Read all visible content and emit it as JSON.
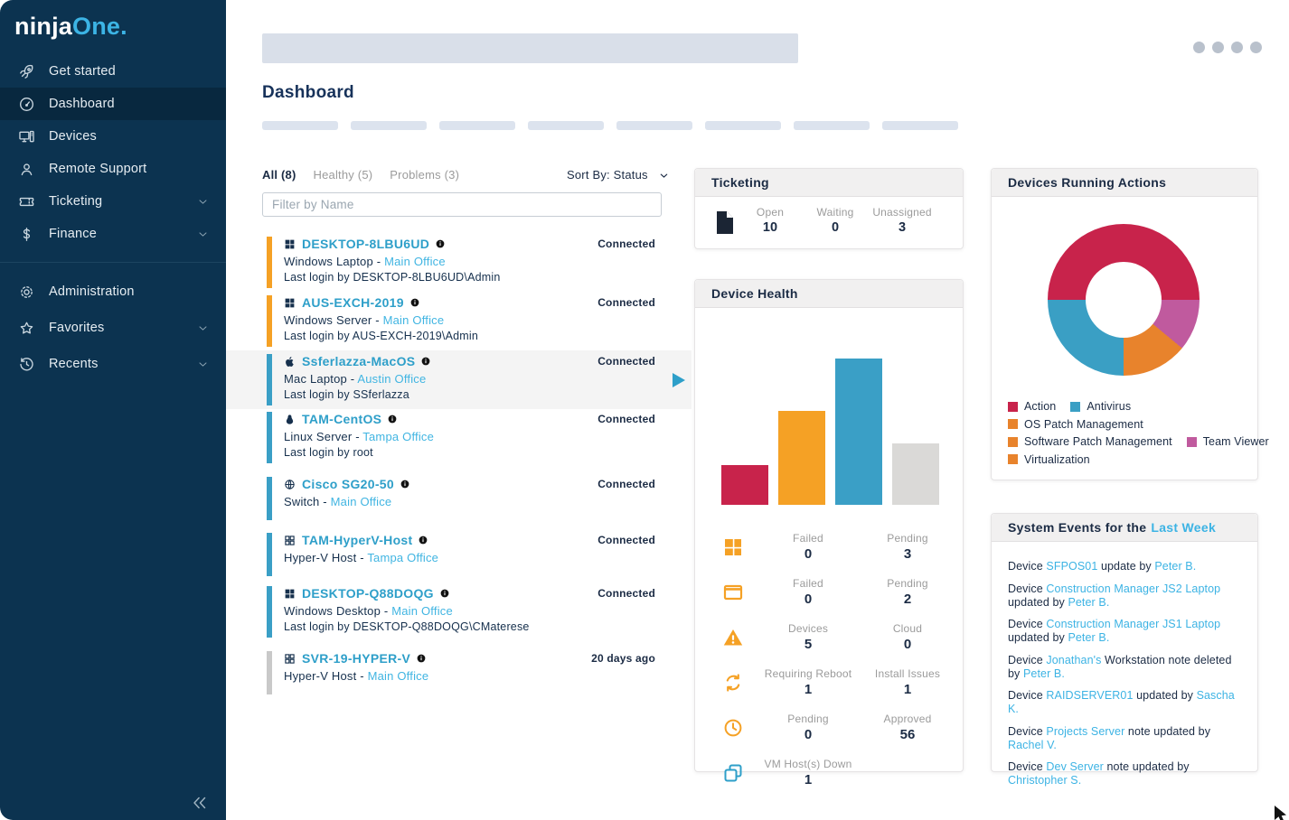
{
  "app": {
    "brand_ninja": "ninja",
    "brand_one": "One."
  },
  "sidebar": {
    "items": [
      {
        "label": "Get started",
        "icon": "rocket"
      },
      {
        "label": "Dashboard",
        "icon": "speedometer",
        "active": true
      },
      {
        "label": "Devices",
        "icon": "devices"
      },
      {
        "label": "Remote Support",
        "icon": "person"
      },
      {
        "label": "Ticketing",
        "icon": "ticket",
        "chevron": true
      },
      {
        "label": "Finance",
        "icon": "dollar",
        "chevron": true
      },
      {
        "divider": true
      },
      {
        "label": "Administration",
        "icon": "gear",
        "group2": true
      },
      {
        "label": "Favorites",
        "icon": "star",
        "chevron": true,
        "group2": true
      },
      {
        "label": "Recents",
        "icon": "history",
        "chevron": true,
        "group2": true
      }
    ]
  },
  "header": {
    "title": "Dashboard"
  },
  "device_list": {
    "tabs": [
      {
        "label": "All (8)",
        "active": true
      },
      {
        "label": "Healthy (5)"
      },
      {
        "label": "Problems (3)"
      }
    ],
    "sort_label": "Sort By: Status",
    "filter_placeholder": "Filter by Name",
    "devices": [
      {
        "name": "DESKTOP-8LBU6UD",
        "os": "windows",
        "bar_color": "#F5A125",
        "status": "Connected",
        "type": "Windows Laptop",
        "office": "Main Office",
        "last_login": "Last login by DESKTOP-8LBU6UD\\Admin"
      },
      {
        "name": "AUS-EXCH-2019",
        "os": "windows",
        "bar_color": "#F5A125",
        "status": "Connected",
        "type": "Windows Server",
        "office": "Main Office",
        "last_login": "Last login by AUS-EXCH-2019\\Admin"
      },
      {
        "name": "Ssferlazza-MacOS",
        "os": "apple",
        "bar_color": "#3A9FC6",
        "status": "Connected",
        "type": "Mac Laptop",
        "office": "Austin Office",
        "last_login": "Last login by SSferlazza",
        "selected": true
      },
      {
        "name": "TAM-CentOS",
        "os": "linux",
        "bar_color": "#3A9FC6",
        "status": "Connected",
        "type": "Linux Server",
        "office": "Tampa Office",
        "last_login": "Last login by root"
      },
      {
        "name": "Cisco SG20-50",
        "os": "globe",
        "bar_color": "#3A9FC6",
        "status": "Connected",
        "type": "Switch",
        "office": "Main Office"
      },
      {
        "name": "TAM-HyperV-Host",
        "os": "grid",
        "bar_color": "#3A9FC6",
        "status": "Connected",
        "type": "Hyper-V Host",
        "office": "Tampa Office"
      },
      {
        "name": "DESKTOP-Q88DOQG",
        "os": "windows",
        "bar_color": "#3A9FC6",
        "status": "Connected",
        "type": "Windows Desktop",
        "office": "Main Office",
        "last_login": "Last login by DESKTOP-Q88DOQG\\CMaterese"
      },
      {
        "name": "SVR-19-HYPER-V",
        "os": "grid",
        "bar_color": "#C9C9C9",
        "status": "20 days ago",
        "type": "Hyper-V Host",
        "office": "Main Office"
      }
    ]
  },
  "ticketing": {
    "title": "Ticketing",
    "stats": [
      {
        "label": "Open",
        "value": "10"
      },
      {
        "label": "Waiting",
        "value": "0"
      },
      {
        "label": "Unassigned",
        "value": "3"
      }
    ]
  },
  "device_health": {
    "title": "Device Health",
    "stats": [
      {
        "icon": "windows-orange",
        "cols": [
          {
            "label": "Failed",
            "value": "0"
          },
          {
            "label": "Pending",
            "value": "3"
          }
        ]
      },
      {
        "icon": "app-window",
        "cols": [
          {
            "label": "Failed",
            "value": "0"
          },
          {
            "label": "Pending",
            "value": "2"
          }
        ]
      },
      {
        "icon": "warning",
        "cols": [
          {
            "label": "Devices",
            "value": "5"
          },
          {
            "label": "Cloud",
            "value": "0"
          }
        ]
      },
      {
        "icon": "sync",
        "cols": [
          {
            "label": "Requiring Reboot",
            "value": "1"
          },
          {
            "label": "Install Issues",
            "value": "1"
          }
        ]
      },
      {
        "icon": "clock",
        "cols": [
          {
            "label": "Pending",
            "value": "0"
          },
          {
            "label": "Approved",
            "value": "56"
          }
        ]
      },
      {
        "icon": "vm",
        "cols": [
          {
            "label": "VM Host(s) Down",
            "value": "1"
          }
        ]
      }
    ]
  },
  "devices_running_actions": {
    "title": "Devices Running Actions",
    "legend_rows": [
      [
        {
          "label": "Action",
          "color": "#C8234B"
        },
        {
          "label": "Antivirus",
          "color": "#3A9FC4"
        }
      ],
      [
        {
          "label": "OS Patch Management",
          "color": "#E8832C"
        }
      ],
      [
        {
          "label": "Software Patch Management",
          "color": "#E8832C"
        },
        {
          "label": "Team Viewer",
          "color": "#C05A9E"
        }
      ],
      [
        {
          "label": "Virtualization",
          "color": "#E8832C"
        }
      ]
    ]
  },
  "system_events": {
    "title_prefix": "System Events for the",
    "title_link": "Last Week",
    "events": [
      [
        {
          "t": "Device "
        },
        {
          "t": "SFPOS01",
          "l": true
        },
        {
          "t": " update by "
        },
        {
          "t": "Peter B.",
          "l": true
        }
      ],
      [
        {
          "t": "Device "
        },
        {
          "t": "Construction Manager JS2 Laptop",
          "l": true
        },
        {
          "t": " updated by "
        },
        {
          "t": "Peter B.",
          "l": true
        }
      ],
      [
        {
          "t": "Device "
        },
        {
          "t": "Construction Manager JS1 Laptop",
          "l": true
        },
        {
          "t": " updated by "
        },
        {
          "t": "Peter B.",
          "l": true
        }
      ],
      [
        {
          "t": "Device "
        },
        {
          "t": "Jonathan's",
          "l": true
        },
        {
          "t": " Workstation note deleted by "
        },
        {
          "t": "Peter B.",
          "l": true
        }
      ],
      [
        {
          "t": "Device "
        },
        {
          "t": "RAIDSERVER01",
          "l": true
        },
        {
          "t": " updated by "
        },
        {
          "t": "Sascha K.",
          "l": true
        }
      ],
      [
        {
          "t": "Device "
        },
        {
          "t": "Projects Server",
          "l": true
        },
        {
          "t": " note updated by "
        },
        {
          "t": "Rachel V.",
          "l": true
        }
      ],
      [
        {
          "t": "Device "
        },
        {
          "t": "Dev Server",
          "l": true
        },
        {
          "t": " note updated by "
        },
        {
          "t": "Christopher S.",
          "l": true
        }
      ]
    ]
  },
  "chart_data": [
    {
      "type": "bar",
      "title": "Device Health",
      "categories": [
        "",
        "",
        "",
        ""
      ],
      "values": [
        27,
        64,
        100,
        42
      ],
      "colors": [
        "#C8234B",
        "#F5A125",
        "#3A9FC6",
        "#DAD9D7"
      ],
      "ylim": [
        0,
        100
      ],
      "grid": false,
      "axes_labeled": false
    },
    {
      "type": "donut",
      "title": "Devices Running Actions",
      "slices": [
        {
          "label": "Action",
          "value": 50,
          "color": "#C8234B"
        },
        {
          "label": "Team Viewer",
          "value": 11,
          "color": "#C05A9E"
        },
        {
          "label": "OS Patch Management",
          "value": 14,
          "color": "#E8832C"
        },
        {
          "label": "Antivirus",
          "value": 25,
          "color": "#3A9FC4"
        }
      ],
      "start_angle_css_deg": 270,
      "legend_position": "bottom"
    }
  ],
  "colors": {
    "sidebar_bg": "#0C3350",
    "sidebar_active": "#08283F",
    "brand_accent": "#3CB4E5",
    "navy_text": "#16304D",
    "link_teal": "#2E9FC9",
    "link_cyan": "#41B5E2",
    "muted_gray": "#9B9B9B",
    "status_orange": "#F5A125",
    "status_blue": "#3A9FC6",
    "status_gray": "#C9C9C9",
    "panel_header_bg": "#F1F0F0",
    "selected_row_bg": "#F4F4F4"
  }
}
